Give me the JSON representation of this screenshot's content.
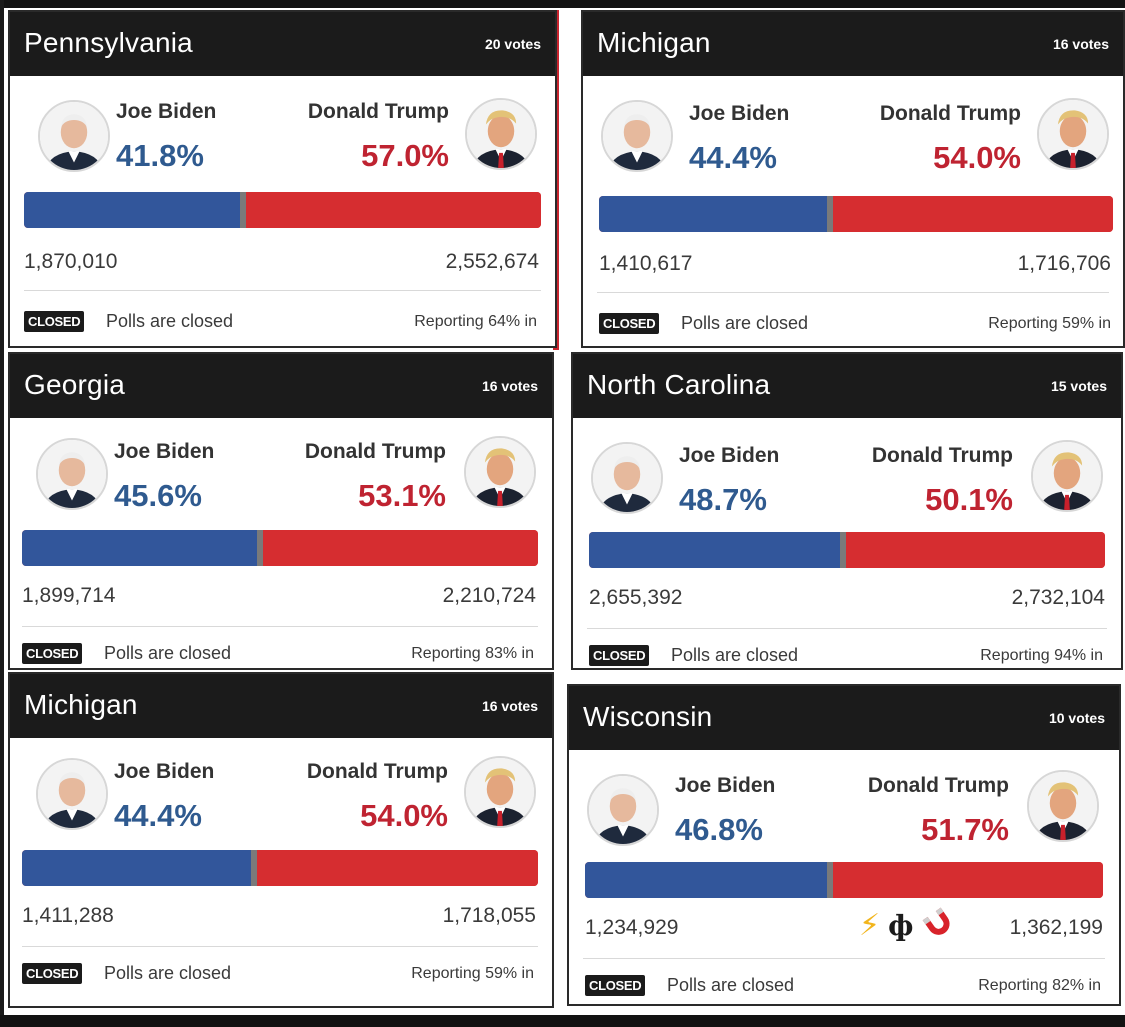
{
  "cards": [
    {
      "state": "Pennsylvania",
      "votes": "20 votes",
      "dem_name": "Joe Biden",
      "dem_pct": "41.8%",
      "dem_share": 0.418,
      "rep_name": "Donald Trump",
      "rep_pct": "57.0%",
      "dem_count": "1,870,010",
      "rep_count": "2,552,674",
      "badge": "CLOSED",
      "status": "Polls are closed",
      "reporting": "Reporting 64% in"
    },
    {
      "state": "Michigan",
      "votes": "16 votes",
      "dem_name": "Joe Biden",
      "dem_pct": "44.4%",
      "dem_share": 0.444,
      "rep_name": "Donald Trump",
      "rep_pct": "54.0%",
      "dem_count": "1,410,617",
      "rep_count": "1,716,706",
      "badge": "CLOSED",
      "status": "Polls are closed",
      "reporting": "Reporting 59% in"
    },
    {
      "state": "Georgia",
      "votes": "16 votes",
      "dem_name": "Joe Biden",
      "dem_pct": "45.6%",
      "dem_share": 0.456,
      "rep_name": "Donald Trump",
      "rep_pct": "53.1%",
      "dem_count": "1,899,714",
      "rep_count": "2,210,724",
      "badge": "CLOSED",
      "status": "Polls are closed",
      "reporting": "Reporting 83% in"
    },
    {
      "state": "North Carolina",
      "votes": "15 votes",
      "dem_name": "Joe Biden",
      "dem_pct": "48.7%",
      "dem_share": 0.487,
      "rep_name": "Donald Trump",
      "rep_pct": "50.1%",
      "dem_count": "2,655,392",
      "rep_count": "2,732,104",
      "badge": "CLOSED",
      "status": "Polls are closed",
      "reporting": "Reporting 94% in"
    },
    {
      "state": "Michigan",
      "votes": "16 votes",
      "dem_name": "Joe Biden",
      "dem_pct": "44.4%",
      "dem_share": 0.444,
      "rep_name": "Donald Trump",
      "rep_pct": "54.0%",
      "dem_count": "1,411,288",
      "rep_count": "1,718,055",
      "badge": "CLOSED",
      "status": "Polls are closed",
      "reporting": "Reporting 59% in"
    },
    {
      "state": "Wisconsin",
      "votes": "10 votes",
      "dem_name": "Joe Biden",
      "dem_pct": "46.8%",
      "dem_share": 0.468,
      "rep_name": "Donald Trump",
      "rep_pct": "51.7%",
      "dem_count": "1,234,929",
      "rep_count": "1,362,199",
      "badge": "CLOSED",
      "status": "Polls are closed",
      "reporting": "Reporting 82% in"
    }
  ],
  "overlay_emojis": [
    "lightning-icon",
    "phi-symbol-icon",
    "magnet-icon"
  ],
  "colors": {
    "dem": "#32569b",
    "rep": "#d62d30",
    "header": "#1b1b1b"
  }
}
